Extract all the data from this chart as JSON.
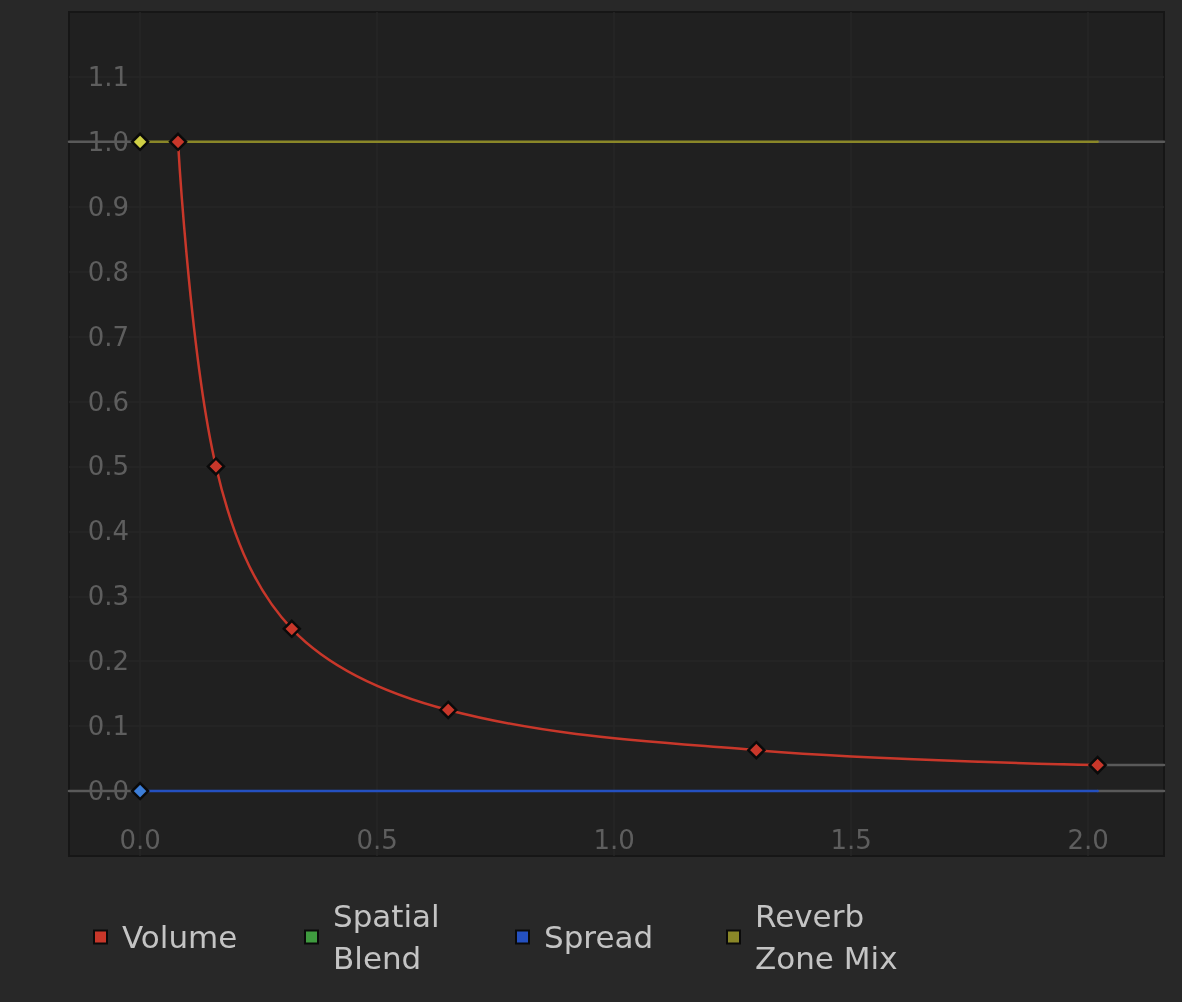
{
  "chart_data": {
    "type": "line",
    "xlim": [
      -0.15,
      2.16
    ],
    "xticks": [
      {
        "value": 0,
        "label": "0.0"
      },
      0.5,
      {
        "value": 1,
        "label": "1.0"
      },
      1.5,
      {
        "value": 2,
        "label": "2.0"
      }
    ],
    "ylim": [
      -0.1,
      1.2
    ],
    "yticks": [
      {
        "value": 0,
        "label": "0.0"
      },
      0.1,
      0.2,
      0.3,
      0.4,
      0.5,
      0.6,
      0.7,
      0.8,
      0.9,
      {
        "value": 1,
        "label": "1.0"
      },
      1.1
    ],
    "grid": true,
    "legend": "bottom",
    "marker": "diamond",
    "series": [
      {
        "color": "#5a5a5a",
        "x": [
          -0.15,
          0
        ],
        "values": [
          1,
          1
        ],
        "marker": "none"
      },
      {
        "color": "#5a5a5a",
        "x": [
          -0.15,
          0
        ],
        "values": [
          0,
          0
        ],
        "marker": "none"
      },
      {
        "color": "#5a5a5a",
        "x": [
          2.02,
          2.16
        ],
        "values": [
          1,
          1
        ],
        "marker": "none"
      },
      {
        "color": "#5a5a5a",
        "x": [
          2.02,
          2.16
        ],
        "values": [
          0.04,
          0.04
        ],
        "marker": "none"
      },
      {
        "color": "#5a5a5a",
        "x": [
          2.02,
          2.16
        ],
        "values": [
          0,
          0
        ],
        "marker": "none"
      },
      {
        "name": "Volume",
        "color": "#c8372a",
        "x": [
          0.08,
          0.16,
          0.32,
          0.65,
          1.3,
          2.02
        ],
        "values": [
          1,
          0.5,
          0.25,
          0.125,
          0.063,
          0.04
        ]
      },
      {
        "name": "Spatial Blend",
        "color": "#3f9b3f"
      },
      {
        "name": "Spread",
        "color": "#2450c0",
        "x": [
          0,
          2.02
        ],
        "values": [
          0,
          0
        ],
        "marker": "none"
      },
      {
        "name": "Reverb Zone Mix",
        "color": "#8a8728",
        "x": [
          0,
          2.02
        ],
        "values": [
          1,
          1
        ],
        "marker": "none"
      },
      {
        "type": "scatter",
        "color": "#3d7ed8",
        "x": [
          0
        ],
        "values": [
          0
        ]
      },
      {
        "type": "scatter",
        "color": "#cfcf45",
        "x": [
          0
        ],
        "values": [
          1
        ]
      }
    ]
  }
}
